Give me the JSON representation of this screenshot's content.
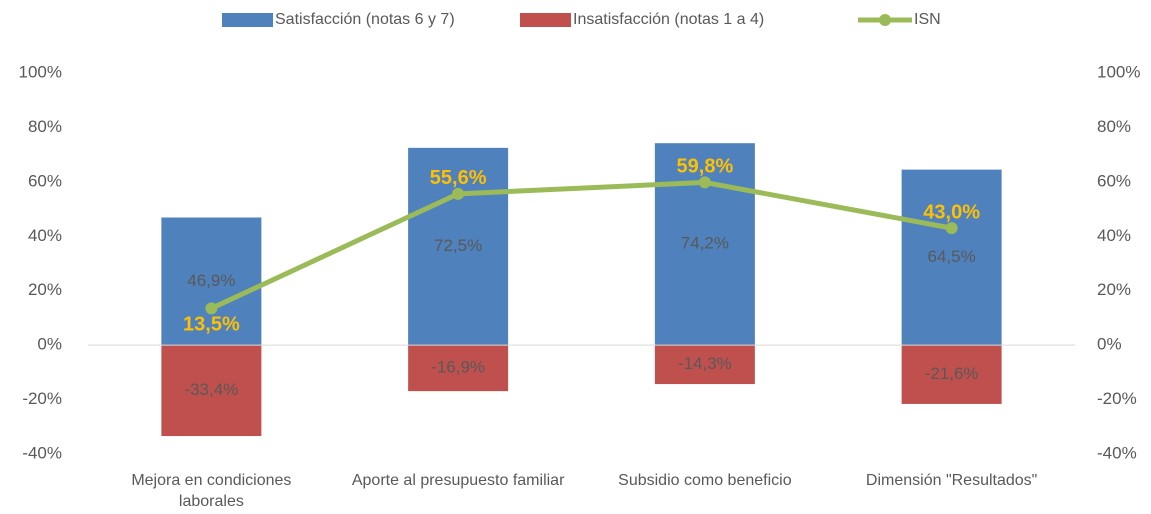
{
  "chart_data": {
    "type": "bar",
    "categories": [
      "Mejora en condiciones laborales",
      "Aporte al presupuesto familiar",
      "Subsidio como beneficio",
      "Dimensión \"Resultados\""
    ],
    "series": [
      {
        "name": "Satisfacción (notas 6 y 7)",
        "type": "bar",
        "color": "#4f81bd",
        "values": [
          46.9,
          72.5,
          74.2,
          64.5
        ],
        "value_labels": [
          "46,9%",
          "72,5%",
          "74,2%",
          "64,5%"
        ]
      },
      {
        "name": "Insatisfacción (notas 1 a 4)",
        "type": "bar",
        "color": "#c0504d",
        "values": [
          -33.4,
          -16.9,
          -14.3,
          -21.6
        ],
        "value_labels": [
          "-33,4%",
          "-16,9%",
          "-14,3%",
          "-21,6%"
        ]
      },
      {
        "name": "ISN",
        "type": "line",
        "axis": "y2",
        "color": "#9bbb59",
        "label_color": "#ffc000",
        "values": [
          13.5,
          55.6,
          59.8,
          43.0
        ],
        "value_labels": [
          "13,5%",
          "55,6%",
          "59,8%",
          "43,0%"
        ]
      }
    ],
    "ylim": [
      -40,
      100
    ],
    "yticks": [
      {
        "value": -40,
        "label": "-40%"
      },
      {
        "value": -20,
        "label": "-20%"
      },
      {
        "value": 0,
        "label": "0%"
      },
      {
        "value": 20,
        "label": "20%"
      },
      {
        "value": 40,
        "label": "40%"
      },
      {
        "value": 60,
        "label": "60%"
      },
      {
        "value": 80,
        "label": "80%"
      },
      {
        "value": 100,
        "label": "100%"
      }
    ],
    "y2lim": [
      -40,
      100
    ],
    "y2ticks": [
      {
        "value": -40,
        "label": "-40%"
      },
      {
        "value": -20,
        "label": "-20%"
      },
      {
        "value": 0,
        "label": "0%"
      },
      {
        "value": 20,
        "label": "20%"
      },
      {
        "value": 40,
        "label": "40%"
      },
      {
        "value": 60,
        "label": "60%"
      },
      {
        "value": 80,
        "label": "80%"
      },
      {
        "value": 100,
        "label": "100%"
      }
    ],
    "grid": false,
    "legend": "top"
  }
}
